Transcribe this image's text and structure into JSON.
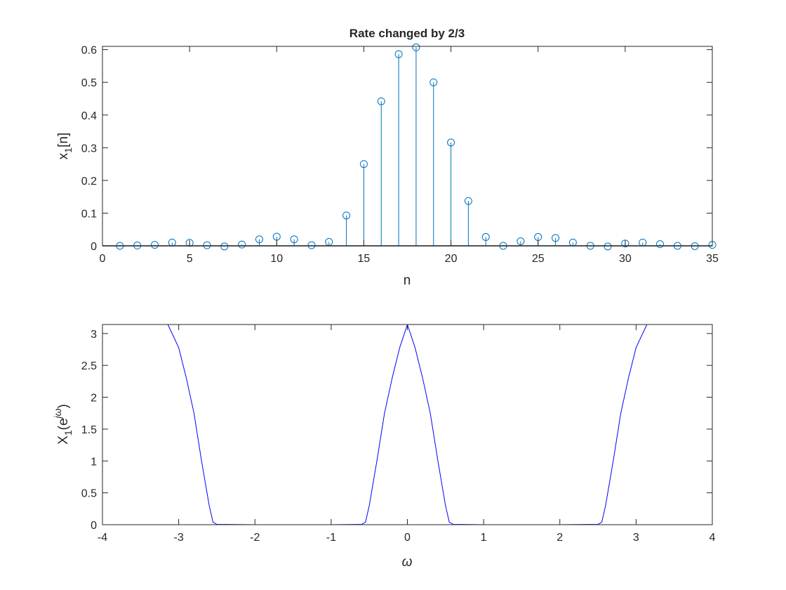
{
  "chart_data": [
    {
      "type": "scatter",
      "style": "stem",
      "title": "Rate changed by 2/3",
      "xlabel": "n",
      "ylabel": "x₁[n]",
      "xlim": [
        0,
        35
      ],
      "ylim": [
        0,
        0.61
      ],
      "xticks": [
        "0",
        "5",
        "10",
        "15",
        "20",
        "25",
        "30",
        "35"
      ],
      "yticks": [
        "0",
        "0.1",
        "0.2",
        "0.3",
        "0.4",
        "0.5",
        "0.6"
      ],
      "grid": false,
      "color": "#0072bd",
      "series": [
        {
          "x": [
            1,
            2,
            3,
            4,
            5,
            6,
            7,
            8,
            9,
            10,
            11,
            12,
            13,
            14,
            15,
            16,
            17,
            18,
            19,
            20,
            21,
            22,
            23,
            24,
            25,
            26,
            27,
            28,
            29,
            30,
            31,
            32,
            33,
            34,
            35
          ],
          "values": [
            0.0,
            0.001,
            0.003,
            0.01,
            0.009,
            0.002,
            -0.002,
            0.004,
            0.02,
            0.028,
            0.02,
            0.002,
            0.012,
            0.093,
            0.25,
            0.442,
            0.586,
            0.607,
            0.5,
            0.316,
            0.137,
            0.027,
            0.0,
            0.014,
            0.027,
            0.024,
            0.01,
            0.0,
            -0.002,
            0.007,
            0.01,
            0.005,
            0.0,
            -0.001,
            0.003
          ]
        }
      ]
    },
    {
      "type": "line",
      "title": "",
      "xlabel": "ω",
      "ylabel_main": "X",
      "ylabel_sub": "1",
      "ylabel_paren": "(e",
      "ylabel_sup": "jω",
      "ylabel_close": ")",
      "xlim": [
        -4,
        4
      ],
      "ylim": [
        0,
        3.1416
      ],
      "xticks": [
        "-4",
        "-3",
        "-2",
        "-1",
        "0",
        "1",
        "2",
        "3",
        "4"
      ],
      "yticks": [
        "0",
        "0.5",
        "1",
        "1.5",
        "2",
        "2.5",
        "3"
      ],
      "grid": false,
      "color": "#0000ff",
      "series": [
        {
          "x": [
            -3.1416,
            -3.0,
            -2.9,
            -2.8,
            -2.7,
            -2.6,
            -2.55,
            -2.5,
            -2.0,
            -1.0,
            -0.6,
            -0.55,
            -0.5,
            -0.4,
            -0.3,
            -0.2,
            -0.1,
            0.0,
            0.1,
            0.2,
            0.3,
            0.4,
            0.5,
            0.55,
            0.6,
            1.0,
            2.0,
            2.5,
            2.55,
            2.6,
            2.7,
            2.8,
            2.9,
            3.0,
            3.1416
          ],
          "values": [
            3.1416,
            2.78,
            2.3,
            1.75,
            1.0,
            0.3,
            0.04,
            0.005,
            0.0,
            0.0,
            0.005,
            0.04,
            0.3,
            1.0,
            1.75,
            2.3,
            2.78,
            3.1416,
            2.78,
            2.3,
            1.75,
            1.0,
            0.3,
            0.04,
            0.005,
            0.0,
            0.0,
            0.005,
            0.04,
            0.3,
            1.0,
            1.75,
            2.3,
            2.78,
            3.1416
          ]
        }
      ]
    }
  ]
}
